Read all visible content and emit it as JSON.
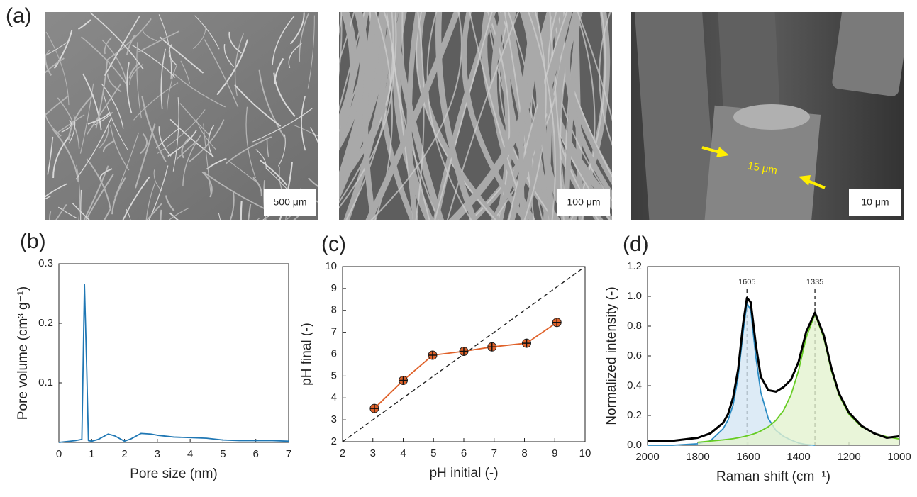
{
  "sem_images": {
    "label": "(a)",
    "scale_bars": [
      "500 μm",
      "100 μm",
      "10 μm"
    ],
    "annotation": "15 μm"
  },
  "chart_data": [
    {
      "type": "line",
      "label": "(b)",
      "xlabel": "Pore size (nm)",
      "ylabel": "Pore volume (cm³ g⁻¹)",
      "xlim": [
        0,
        7
      ],
      "ylim": [
        0,
        0.3
      ],
      "xticks": [
        0,
        1,
        2,
        3,
        4,
        5,
        6,
        7
      ],
      "yticks": [
        0.1,
        0.2,
        0.3
      ],
      "series": [
        {
          "color": "#1f77b4",
          "x": [
            0,
            0.5,
            0.7,
            0.78,
            0.85,
            0.9,
            1.0,
            1.2,
            1.5,
            1.7,
            2.0,
            2.2,
            2.5,
            2.8,
            3,
            3.5,
            4,
            4.5,
            5,
            5.5,
            6,
            6.5,
            7
          ],
          "values": [
            0,
            0.003,
            0.005,
            0.265,
            0.12,
            0.003,
            0.002,
            0.005,
            0.014,
            0.011,
            0.002,
            0.006,
            0.015,
            0.014,
            0.012,
            0.009,
            0.008,
            0.007,
            0.004,
            0.003,
            0.003,
            0.003,
            0.002
          ]
        }
      ]
    },
    {
      "type": "line",
      "label": "(c)",
      "xlabel": "pH initial (-)",
      "ylabel": "pH final (-)",
      "xlim": [
        2,
        10
      ],
      "ylim": [
        2,
        10
      ],
      "xticks": [
        2,
        3,
        4,
        5,
        6,
        7,
        8,
        9,
        10
      ],
      "yticks": [
        2,
        3,
        4,
        5,
        6,
        7,
        8,
        9,
        10
      ],
      "reference_line": {
        "x": [
          2,
          10
        ],
        "y": [
          2,
          10
        ]
      },
      "markers": true,
      "series": [
        {
          "color": "#e0622a",
          "x": [
            3.05,
            4,
            4.97,
            6,
            6.93,
            8.07,
            9.07
          ],
          "values": [
            3.52,
            4.8,
            5.95,
            6.13,
            6.33,
            6.5,
            7.45
          ]
        }
      ]
    },
    {
      "type": "line",
      "label": "(d)",
      "xlabel": "Raman shift (cm⁻¹)",
      "ylabel": "Normalized intensity (-)",
      "xlim": [
        2000,
        1000
      ],
      "ylim": [
        0,
        1.2
      ],
      "xticks": [
        2000,
        1800,
        1600,
        1400,
        1200,
        1000
      ],
      "yticks": [
        {
          "value": 0,
          "label": "0.0"
        },
        0.2,
        0.4,
        0.6,
        0.8,
        {
          "value": 1,
          "label": "1.0"
        },
        1.2
      ],
      "peaks": [
        1605,
        1335
      ],
      "series": [
        {
          "color": "#2b8cc4",
          "fill": "#d4e6f4",
          "x": [
            2000,
            1900,
            1800,
            1750,
            1700,
            1680,
            1660,
            1640,
            1620,
            1605,
            1590,
            1570,
            1550,
            1520,
            1490,
            1460,
            1430,
            1400,
            1370,
            1335
          ],
          "values": [
            0,
            0,
            0.01,
            0.03,
            0.11,
            0.17,
            0.27,
            0.46,
            0.76,
            0.954,
            0.907,
            0.598,
            0.355,
            0.179,
            0.1,
            0.06,
            0.035,
            0.015,
            0.005,
            0
          ]
        },
        {
          "color": "#66cc22",
          "fill": "#e3f3cf",
          "x": [
            1800,
            1750,
            1700,
            1680,
            1660,
            1640,
            1620,
            1605,
            1590,
            1570,
            1550,
            1520,
            1490,
            1460,
            1430,
            1400,
            1370,
            1335,
            1300,
            1270,
            1240,
            1200,
            1150,
            1100,
            1050,
            1000
          ],
          "values": [
            0.02,
            0.028,
            0.036,
            0.04,
            0.044,
            0.05,
            0.057,
            0.063,
            0.07,
            0.081,
            0.096,
            0.124,
            0.167,
            0.233,
            0.338,
            0.502,
            0.722,
            0.88,
            0.722,
            0.502,
            0.338,
            0.208,
            0.124,
            0.081,
            0.057,
            0.042
          ]
        },
        {
          "color": "#000000",
          "x": [
            2000,
            1900,
            1800,
            1750,
            1700,
            1680,
            1660,
            1640,
            1620,
            1605,
            1590,
            1570,
            1550,
            1520,
            1490,
            1460,
            1430,
            1400,
            1370,
            1335,
            1300,
            1270,
            1240,
            1200,
            1150,
            1100,
            1050,
            1000
          ],
          "values": [
            0.03,
            0.03,
            0.05,
            0.08,
            0.15,
            0.21,
            0.32,
            0.51,
            0.82,
            0.99,
            0.96,
            0.68,
            0.46,
            0.37,
            0.36,
            0.39,
            0.44,
            0.56,
            0.76,
            0.89,
            0.74,
            0.52,
            0.35,
            0.22,
            0.13,
            0.08,
            0.05,
            0.06
          ]
        }
      ]
    }
  ]
}
